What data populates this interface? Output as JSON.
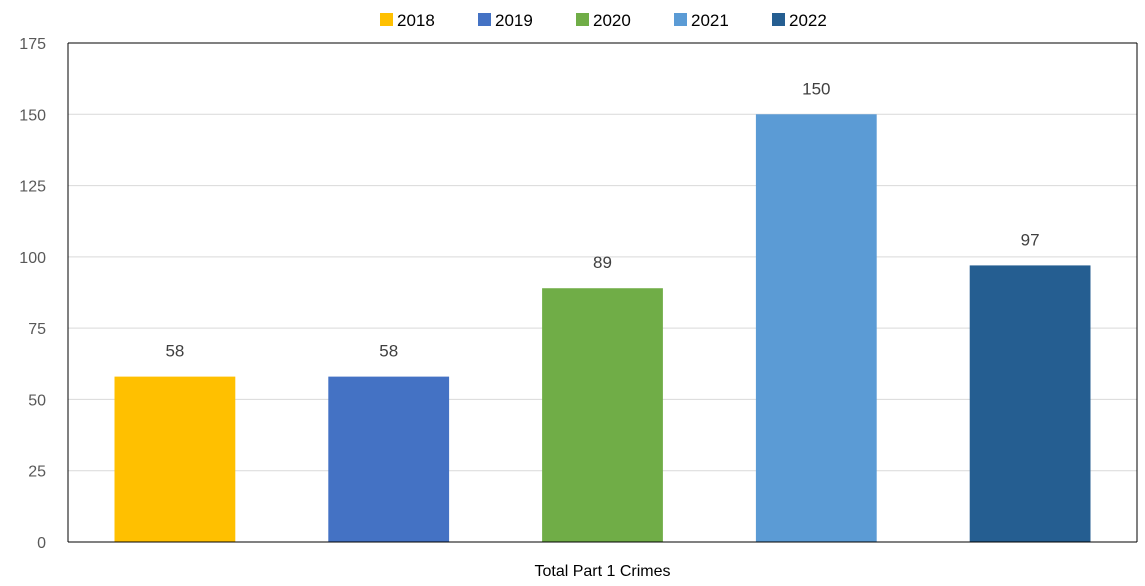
{
  "chart_data": {
    "type": "bar",
    "categories": [
      "Total Part 1 Crimes"
    ],
    "series": [
      {
        "name": "2018",
        "values": [
          58
        ],
        "color": "#FFC000"
      },
      {
        "name": "2019",
        "values": [
          58
        ],
        "color": "#4472C4"
      },
      {
        "name": "2020",
        "values": [
          89
        ],
        "color": "#70AD47"
      },
      {
        "name": "2021",
        "values": [
          150
        ],
        "color": "#5B9BD5"
      },
      {
        "name": "2022",
        "values": [
          97
        ],
        "color": "#255E91"
      }
    ],
    "ylim": [
      0,
      175
    ],
    "yticks": [
      0,
      25,
      50,
      75,
      100,
      125,
      150,
      175
    ],
    "grid": true,
    "legend": "top-center",
    "xlabel": "",
    "ylabel": ""
  }
}
